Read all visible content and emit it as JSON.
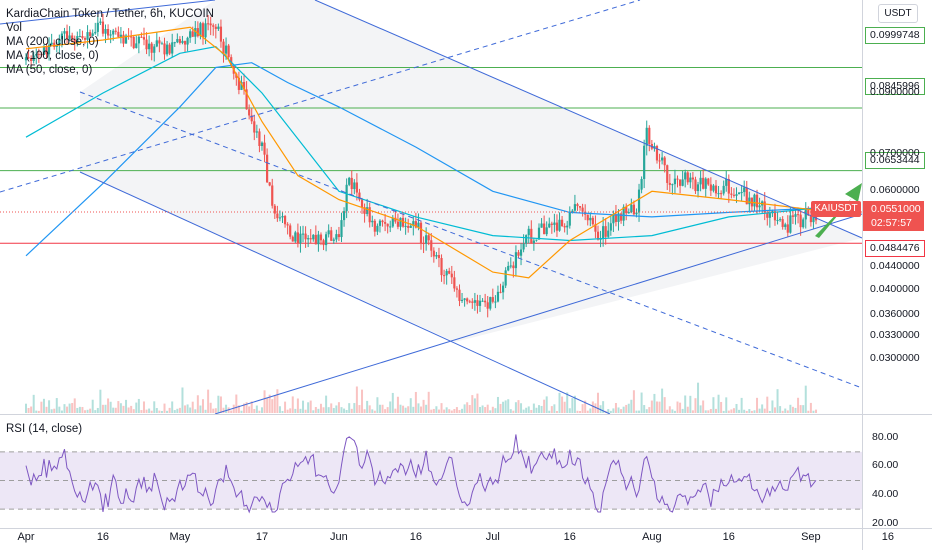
{
  "header": {
    "title": "KardiaChain Token / Tether, 6h, KUCOIN",
    "indicators": [
      "Vol",
      "MA (200, close, 0)",
      "MA (100, close, 0)",
      "MA (50, close, 0)"
    ],
    "currency_button": "USDT"
  },
  "rsi_panel": {
    "label": "RSI (14, close)"
  },
  "current": {
    "symbol": "KAIUSDT",
    "price": "0.0551000",
    "countdown": "02:57:57"
  },
  "horizontal_levels": [
    {
      "label": "0.0999748",
      "value": 0.0999748,
      "color": "#4caf50"
    },
    {
      "label": "0.0845996",
      "value": 0.0845996,
      "color": "#4caf50"
    },
    {
      "label": "0.0653444",
      "value": 0.0653444,
      "color": "#4caf50"
    },
    {
      "label": "0.0484476",
      "value": 0.0484476,
      "color": "#f23645"
    }
  ],
  "colors": {
    "up": "#26a69a",
    "down": "#ef5350",
    "ma200": "#2196f3",
    "ma100": "#00bcd4",
    "ma50": "#ff9800",
    "trend": "#3f6ad8",
    "rsi": "#7e57c2",
    "rsi_band": "#ede7f6",
    "arrow": "#4caf50"
  },
  "chart_data": {
    "type": "candlestick",
    "price_axis": {
      "scale": "log",
      "ticks": [
        "0.0900000",
        "0.0700000",
        "0.0600000",
        "0.0440000",
        "0.0400000",
        "0.0360000",
        "0.0330000",
        "0.0300000"
      ],
      "tick_values": [
        0.09,
        0.07,
        0.06,
        0.044,
        0.04,
        0.036,
        0.033,
        0.03
      ]
    },
    "x_axis": {
      "ticks": [
        "Apr",
        "16",
        "May",
        "17",
        "Jun",
        "16",
        "Jul",
        "16",
        "Aug",
        "16",
        "Sep",
        "16"
      ]
    },
    "price_path": [
      [
        "Apr 1",
        0.103
      ],
      [
        "Apr 8",
        0.112
      ],
      [
        "Apr 16",
        0.118
      ],
      [
        "Apr 22",
        0.11
      ],
      [
        "Apr 28",
        0.108
      ],
      [
        "May 3",
        0.115
      ],
      [
        "May 8",
        0.118
      ],
      [
        "May 13",
        0.092
      ],
      [
        "May 17",
        0.072
      ],
      [
        "May 19",
        0.056
      ],
      [
        "May 24",
        0.049
      ],
      [
        "Jun 1",
        0.05
      ],
      [
        "Jun 3",
        0.064
      ],
      [
        "Jun 8",
        0.052
      ],
      [
        "Jun 16",
        0.052
      ],
      [
        "Jun 22",
        0.042
      ],
      [
        "Jun 26",
        0.037
      ],
      [
        "Jul 1",
        0.038
      ],
      [
        "Jul 8",
        0.05
      ],
      [
        "Jul 14",
        0.052
      ],
      [
        "Jul 18",
        0.057
      ],
      [
        "Jul 22",
        0.05
      ],
      [
        "Jul 25",
        0.054
      ],
      [
        "Jul 29",
        0.056
      ],
      [
        "Jul 31",
        0.076
      ],
      [
        "Aug 4",
        0.064
      ],
      [
        "Aug 10",
        0.062
      ],
      [
        "Aug 16",
        0.061
      ],
      [
        "Aug 22",
        0.057
      ],
      [
        "Aug 27",
        0.052
      ],
      [
        "Sep 2",
        0.0551
      ]
    ],
    "moving_averages": [
      {
        "name": "MA (200, close, 0)",
        "points": [
          [
            "Apr 1",
            0.046
          ],
          [
            "Apr 16",
            0.062
          ],
          [
            "May 1",
            0.085
          ],
          [
            "May 8",
            0.1
          ],
          [
            "May 15",
            0.102
          ],
          [
            "May 22",
            0.094
          ],
          [
            "Jun 1",
            0.085
          ],
          [
            "Jun 16",
            0.072
          ],
          [
            "Jul 1",
            0.06
          ],
          [
            "Jul 16",
            0.055
          ],
          [
            "Aug 1",
            0.054
          ],
          [
            "Aug 16",
            0.055
          ],
          [
            "Sep 2",
            0.056
          ]
        ]
      },
      {
        "name": "MA (100, close, 0)",
        "points": [
          [
            "Apr 1",
            0.075
          ],
          [
            "Apr 16",
            0.09
          ],
          [
            "May 1",
            0.106
          ],
          [
            "May 8",
            0.109
          ],
          [
            "May 17",
            0.09
          ],
          [
            "Jun 1",
            0.06
          ],
          [
            "Jun 16",
            0.054
          ],
          [
            "Jul 1",
            0.05
          ],
          [
            "Jul 16",
            0.049
          ],
          [
            "Aug 1",
            0.05
          ],
          [
            "Aug 16",
            0.054
          ],
          [
            "Sep 2",
            0.056
          ]
        ]
      },
      {
        "name": "MA (50, close, 0)",
        "points": [
          [
            "Apr 1",
            0.108
          ],
          [
            "Apr 16",
            0.112
          ],
          [
            "May 3",
            0.118
          ],
          [
            "May 10",
            0.105
          ],
          [
            "May 17",
            0.08
          ],
          [
            "May 24",
            0.064
          ],
          [
            "Jun 1",
            0.058
          ],
          [
            "Jun 16",
            0.052
          ],
          [
            "Jul 1",
            0.043
          ],
          [
            "Jul 8",
            0.042
          ],
          [
            "Jul 16",
            0.049
          ],
          [
            "Aug 1",
            0.06
          ],
          [
            "Aug 16",
            0.058
          ],
          [
            "Sep 2",
            0.0555
          ]
        ]
      }
    ],
    "rsi": {
      "name": "RSI (14, close)",
      "ticks": [
        "80.00",
        "60.00",
        "40.00",
        "20.00"
      ],
      "tick_values": [
        80,
        60,
        40,
        20
      ],
      "band": [
        30,
        70
      ],
      "midline": 50,
      "last": 57
    }
  }
}
